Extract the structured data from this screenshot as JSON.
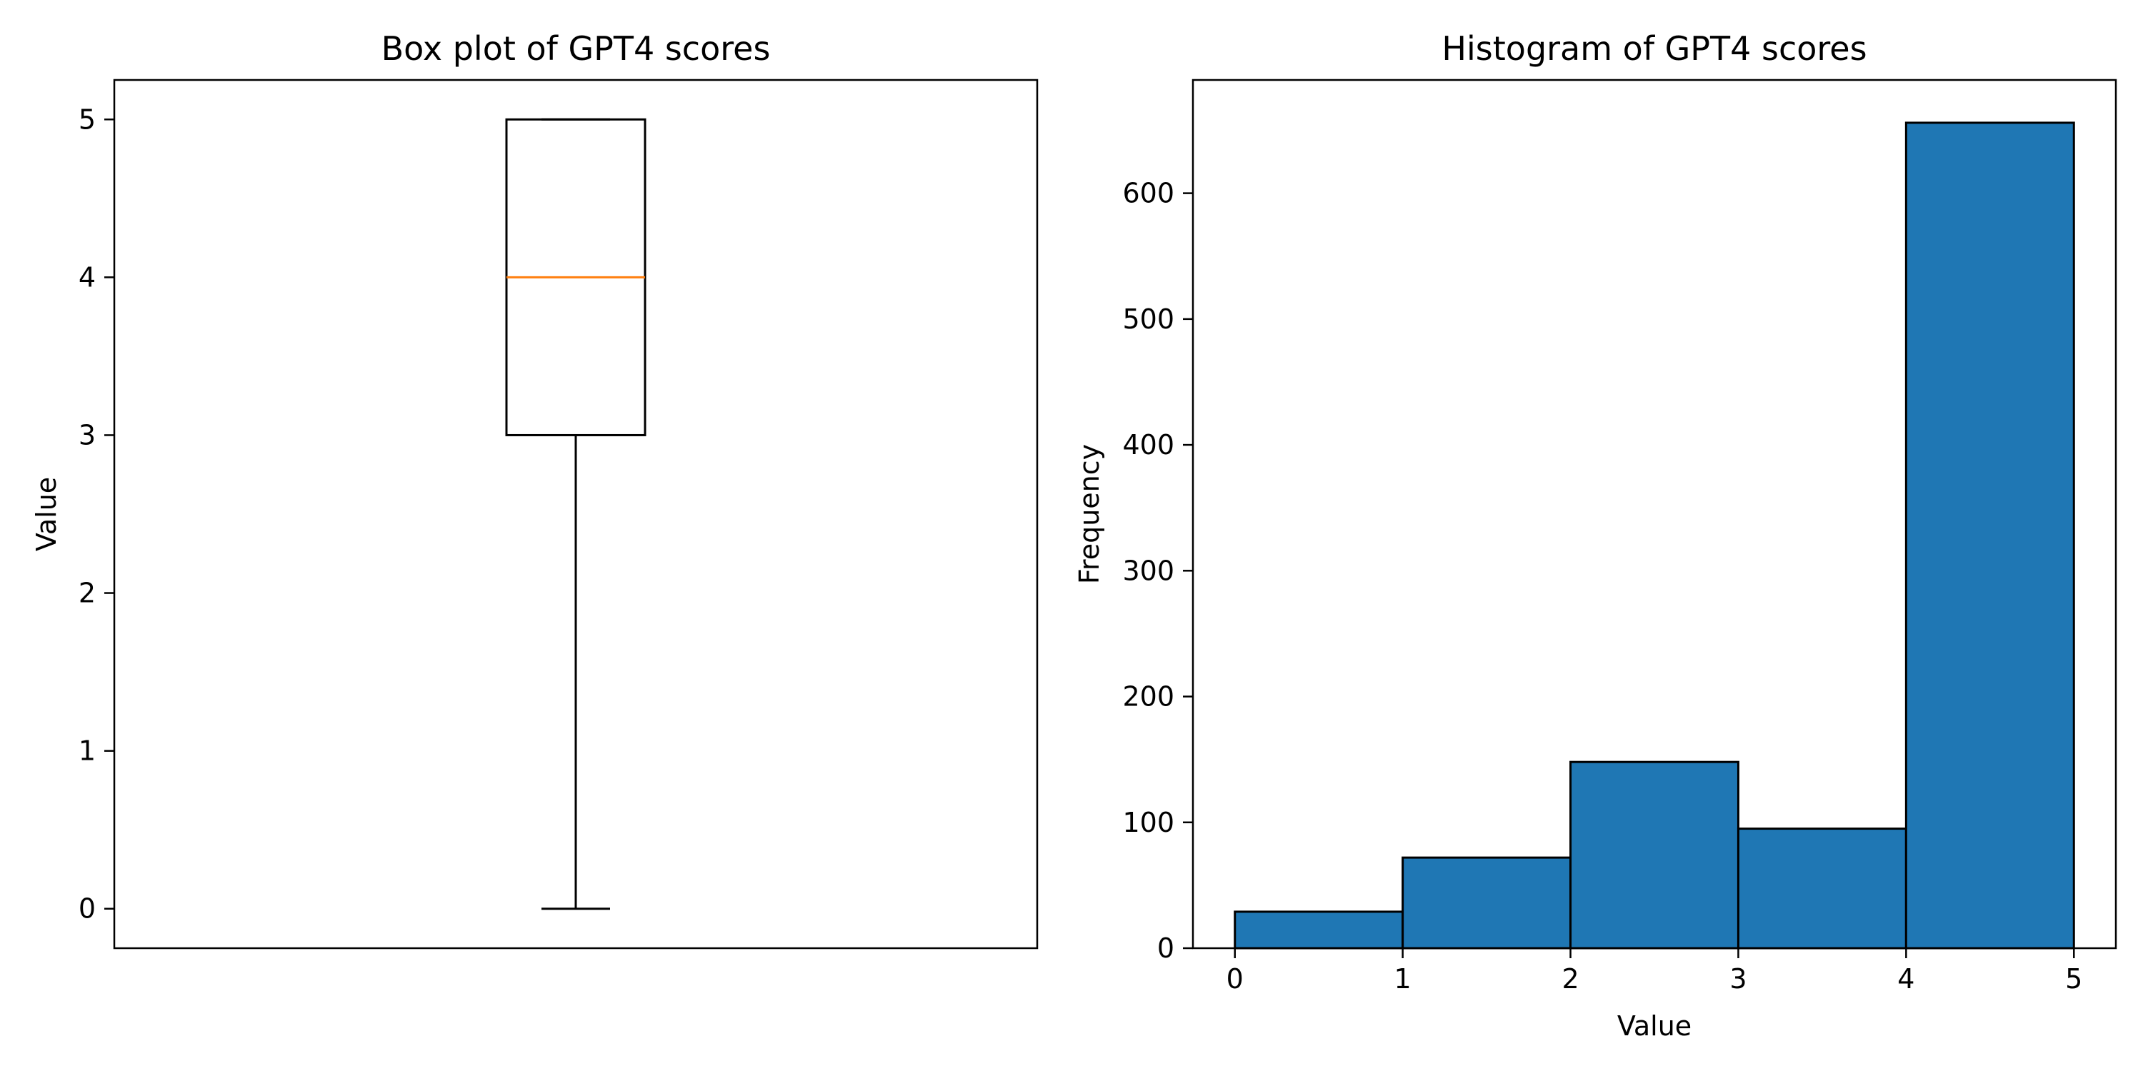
{
  "chart_data": [
    {
      "type": "box",
      "title": "Box plot of GPT4 scores",
      "xlabel": "",
      "ylabel": "Value",
      "ylim": [
        -0.25,
        5.25
      ],
      "yticks": [
        0,
        1,
        2,
        3,
        4,
        5
      ],
      "box": {
        "min": 0,
        "q1": 3,
        "median": 4,
        "q3": 5,
        "max": 5
      },
      "grid": false,
      "colors": {
        "box": "#000000",
        "median": "#ff7f0e"
      }
    },
    {
      "type": "bar",
      "subtype": "histogram",
      "title": "Histogram of GPT4 scores",
      "xlabel": "Value",
      "ylabel": "Frequency",
      "xlim": [
        -0.25,
        5.25
      ],
      "ylim": [
        0,
        690
      ],
      "xticks": [
        0,
        1,
        2,
        3,
        4,
        5
      ],
      "yticks": [
        0,
        100,
        200,
        300,
        400,
        500,
        600
      ],
      "bins": [
        {
          "x0": 0,
          "x1": 1,
          "value": 29
        },
        {
          "x0": 1,
          "x1": 2,
          "value": 72
        },
        {
          "x0": 2,
          "x1": 3,
          "value": 148
        },
        {
          "x0": 3,
          "x1": 4,
          "value": 95
        },
        {
          "x0": 4,
          "x1": 5,
          "value": 656
        }
      ],
      "grid": false,
      "colors": {
        "bar_fill": "#1f77b4",
        "bar_edge": "#000000"
      }
    }
  ]
}
